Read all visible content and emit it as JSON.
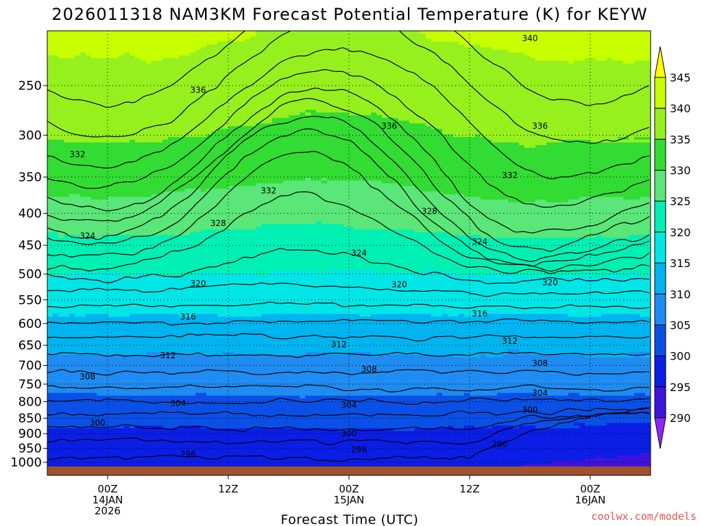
{
  "title": "2026011318 NAM3KM Forecast Potential Temperature (K) for KEYW",
  "credit": "coolwx.com/models",
  "chart_data": {
    "type": "heatmap",
    "title": "2026011318 NAM3KM Forecast Potential Temperature (K) for KEYW",
    "xlabel": "Forecast Time (UTC)",
    "ylabel": "",
    "y_axis": {
      "scale": "log",
      "ticks": [
        250,
        300,
        350,
        400,
        450,
        500,
        550,
        600,
        650,
        700,
        750,
        800,
        850,
        900,
        950,
        1000
      ],
      "range": [
        1000,
        200
      ]
    },
    "x_axis": {
      "range_hours": [
        -6,
        54
      ],
      "ticks": [
        {
          "hour": 0,
          "lines": [
            "00Z",
            "14JAN",
            "2026"
          ]
        },
        {
          "hour": 12,
          "lines": [
            "12Z"
          ]
        },
        {
          "hour": 24,
          "lines": [
            "00Z",
            "15JAN"
          ]
        },
        {
          "hour": 36,
          "lines": [
            "12Z"
          ]
        },
        {
          "hour": 48,
          "lines": [
            "00Z",
            "16JAN"
          ]
        }
      ]
    },
    "grid": true,
    "colorbar": {
      "labels": [
        345,
        340,
        335,
        330,
        325,
        320,
        315,
        310,
        305,
        300,
        295,
        290
      ],
      "bins": [
        {
          "from": 345,
          "to": 999,
          "color": "#ffff00"
        },
        {
          "from": 340,
          "to": 345,
          "color": "#c8ff00"
        },
        {
          "from": 335,
          "to": 340,
          "color": "#96f01e"
        },
        {
          "from": 330,
          "to": 335,
          "color": "#32dc32"
        },
        {
          "from": 325,
          "to": 330,
          "color": "#5ae678"
        },
        {
          "from": 320,
          "to": 325,
          "color": "#00f0b4"
        },
        {
          "from": 315,
          "to": 320,
          "color": "#00e6e6"
        },
        {
          "from": 310,
          "to": 315,
          "color": "#00b4f0"
        },
        {
          "from": 305,
          "to": 310,
          "color": "#1e8cf0"
        },
        {
          "from": 300,
          "to": 305,
          "color": "#0a50e6"
        },
        {
          "from": 295,
          "to": 300,
          "color": "#0a1ee6"
        },
        {
          "from": 290,
          "to": 295,
          "color": "#3c14dc"
        },
        {
          "from": 0,
          "to": 290,
          "color": "#8c28ff"
        }
      ]
    },
    "contour_interval": 2,
    "profile_reference": [
      {
        "p": 1000,
        "theta": 295.6
      },
      {
        "p": 975,
        "theta": 296.2
      },
      {
        "p": 950,
        "theta": 296.8
      },
      {
        "p": 925,
        "theta": 298.0
      },
      {
        "p": 900,
        "theta": 299.2
      },
      {
        "p": 875,
        "theta": 300.3
      },
      {
        "p": 850,
        "theta": 301.3
      },
      {
        "p": 825,
        "theta": 302.6
      },
      {
        "p": 800,
        "theta": 303.8
      },
      {
        "p": 775,
        "theta": 305.3
      },
      {
        "p": 750,
        "theta": 306.6
      },
      {
        "p": 725,
        "theta": 307.7
      },
      {
        "p": 700,
        "theta": 308.8
      },
      {
        "p": 650,
        "theta": 311.0
      },
      {
        "p": 600,
        "theta": 313.8
      },
      {
        "p": 550,
        "theta": 316.9
      },
      {
        "p": 500,
        "theta": 320.0
      },
      {
        "p": 450,
        "theta": 323.3
      },
      {
        "p": 400,
        "theta": 327.8
      },
      {
        "p": 350,
        "theta": 331.8
      },
      {
        "p": 300,
        "theta": 334.8
      },
      {
        "p": 250,
        "theta": 337.8
      },
      {
        "p": 200,
        "theta": 341.0
      }
    ],
    "contour_labels": [
      {
        "value": 340,
        "hour": 42,
        "p": 210
      },
      {
        "value": 336,
        "hour": 9,
        "p": 254
      },
      {
        "value": 336,
        "hour": 28,
        "p": 290
      },
      {
        "value": 336,
        "hour": 43,
        "p": 290
      },
      {
        "value": 332,
        "hour": -3,
        "p": 322
      },
      {
        "value": 332,
        "hour": 16,
        "p": 368
      },
      {
        "value": 332,
        "hour": 40,
        "p": 348
      },
      {
        "value": 328,
        "hour": 11,
        "p": 415
      },
      {
        "value": 328,
        "hour": 32,
        "p": 397
      },
      {
        "value": 324,
        "hour": -2,
        "p": 435
      },
      {
        "value": 324,
        "hour": 25,
        "p": 463
      },
      {
        "value": 324,
        "hour": 37,
        "p": 444
      },
      {
        "value": 320,
        "hour": 9,
        "p": 518
      },
      {
        "value": 320,
        "hour": 29,
        "p": 520
      },
      {
        "value": 320,
        "hour": 44,
        "p": 516
      },
      {
        "value": 316,
        "hour": 8,
        "p": 585
      },
      {
        "value": 316,
        "hour": 37,
        "p": 579
      },
      {
        "value": 312,
        "hour": 6,
        "p": 675
      },
      {
        "value": 312,
        "hour": 23,
        "p": 648
      },
      {
        "value": 312,
        "hour": 40,
        "p": 640
      },
      {
        "value": 308,
        "hour": -2,
        "p": 730
      },
      {
        "value": 308,
        "hour": 26,
        "p": 710
      },
      {
        "value": 308,
        "hour": 43,
        "p": 695
      },
      {
        "value": 304,
        "hour": 7,
        "p": 805
      },
      {
        "value": 304,
        "hour": 24,
        "p": 810
      },
      {
        "value": 304,
        "hour": 43,
        "p": 775
      },
      {
        "value": 300,
        "hour": -1,
        "p": 865
      },
      {
        "value": 300,
        "hour": 24,
        "p": 900
      },
      {
        "value": 300,
        "hour": 42,
        "p": 825
      },
      {
        "value": 296,
        "hour": 8,
        "p": 970
      },
      {
        "value": 296,
        "hour": 25,
        "p": 955
      },
      {
        "value": 296,
        "hour": 39,
        "p": 935
      }
    ]
  }
}
